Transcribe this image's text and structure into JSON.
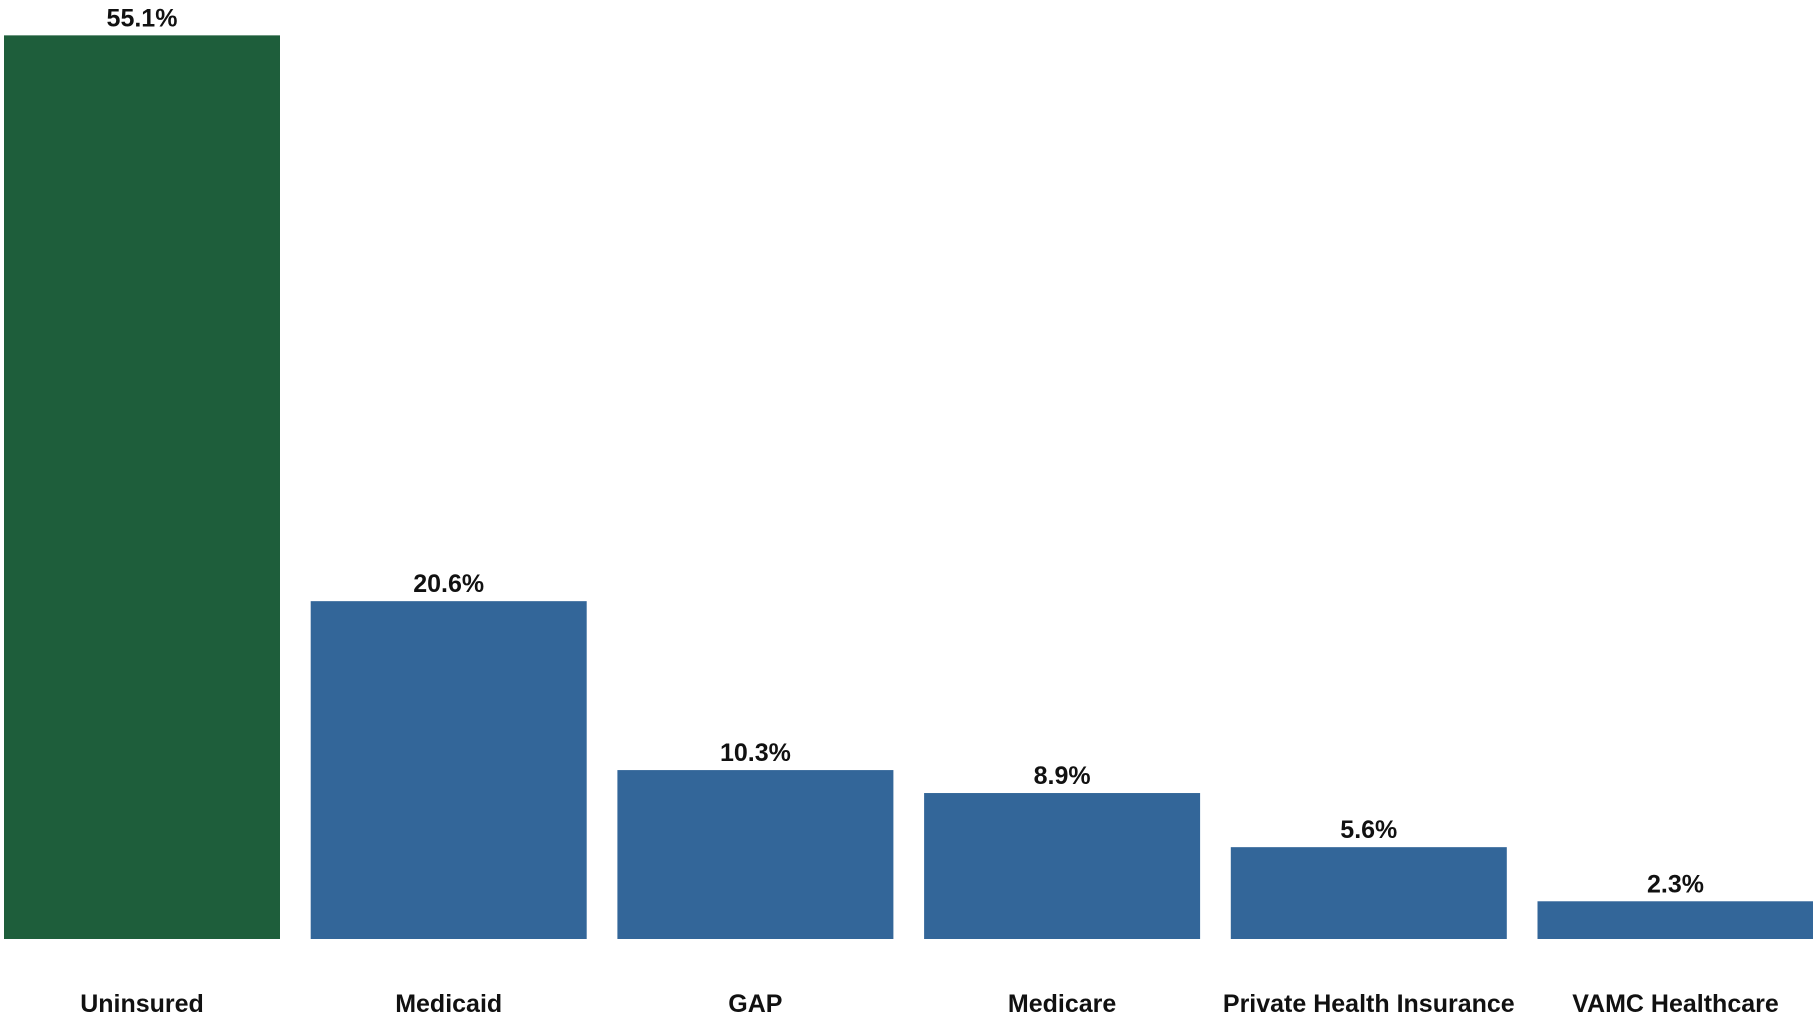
{
  "chart_data": {
    "type": "bar",
    "categories": [
      "Uninsured",
      "Medicaid",
      "GAP",
      "Medicare",
      "Private Health Insurance",
      "VAMC Healthcare"
    ],
    "values": [
      55.1,
      20.6,
      10.3,
      8.9,
      5.6,
      2.3
    ],
    "value_labels": [
      "55.1%",
      "20.6%",
      "10.3%",
      "8.9%",
      "5.6%",
      "2.3%"
    ],
    "colors": [
      "#1e5e3b",
      "#336699",
      "#336699",
      "#336699",
      "#336699",
      "#336699"
    ]
  }
}
